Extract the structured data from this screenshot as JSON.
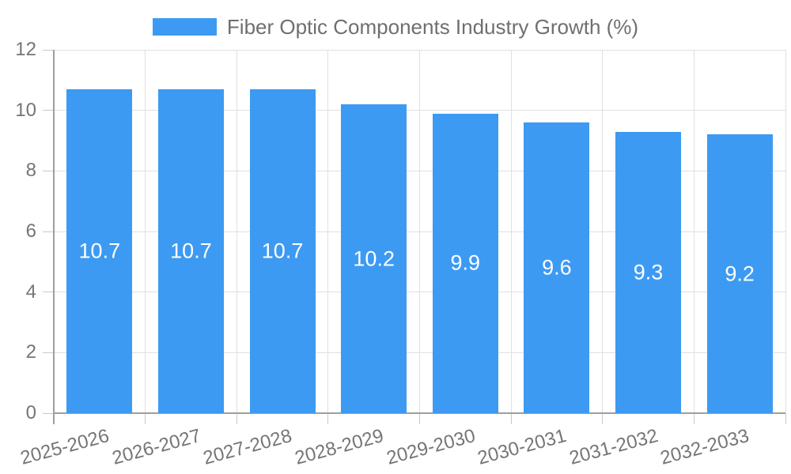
{
  "legend": {
    "label": "Fiber Optic Components Industry Growth (%)"
  },
  "chart_data": {
    "type": "bar",
    "title": "Fiber Optic Components Industry Growth (%)",
    "categories": [
      "2025-2026",
      "2026-2027",
      "2027-2028",
      "2028-2029",
      "2029-2030",
      "2030-2031",
      "2031-2032",
      "2032-2033"
    ],
    "values": [
      10.7,
      10.7,
      10.7,
      10.2,
      9.9,
      9.6,
      9.3,
      9.2
    ],
    "value_labels": [
      "10.7",
      "10.7",
      "10.7",
      "10.2",
      "9.9",
      "9.6",
      "9.3",
      "9.2"
    ],
    "xlabel": "",
    "ylabel": "",
    "ylim": [
      0,
      12
    ],
    "yticks": [
      0,
      2,
      4,
      6,
      8,
      10,
      12
    ],
    "grid": true,
    "legend_position": "top-center",
    "x_tick_rotation_deg": -15,
    "colors": {
      "bar": "#3d9af2",
      "bar_value_text": "#ffffff",
      "axis_text": "#757575",
      "legend_text": "#6f6f6f",
      "grid": "#e0e0e0",
      "axis_line": "#9e9e9e",
      "tick": "#c9c9c9",
      "background": "#ffffff"
    }
  }
}
